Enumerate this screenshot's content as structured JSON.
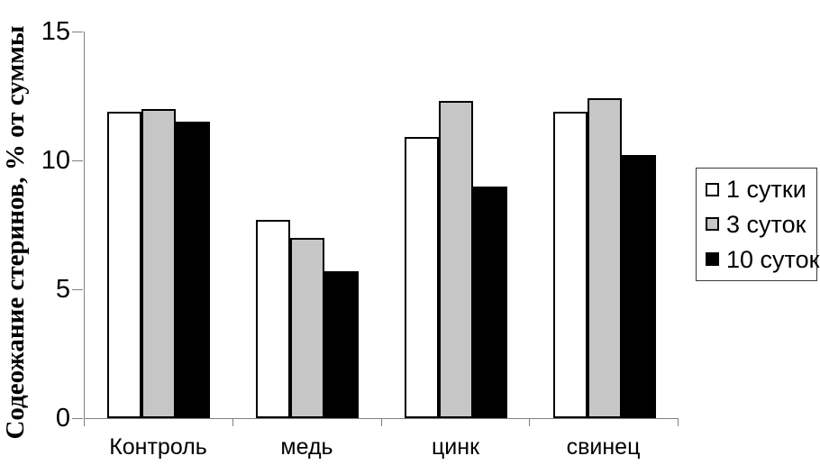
{
  "chart_data": {
    "type": "bar",
    "title": "",
    "xlabel": "",
    "ylabel": "Содеожание стеринов, % от суммы",
    "categories": [
      "Контроль",
      "медь",
      "цинк",
      "свинец"
    ],
    "series": [
      {
        "name": "1 сутки",
        "color": "#FFFFFF",
        "values": [
          11.9,
          7.7,
          10.9,
          11.9
        ]
      },
      {
        "name": "3 суток",
        "color": "#C6C6C6",
        "values": [
          12.0,
          7.0,
          12.3,
          12.4
        ]
      },
      {
        "name": "10 суток",
        "color": "#000000",
        "values": [
          11.5,
          5.7,
          9.0,
          10.2
        ]
      }
    ],
    "ylim": [
      0,
      15
    ],
    "yticks": [
      0,
      5,
      10,
      15
    ],
    "grid": false,
    "legend_position": "right",
    "bar_border_color": "#000000",
    "axis_color": "#808080"
  }
}
